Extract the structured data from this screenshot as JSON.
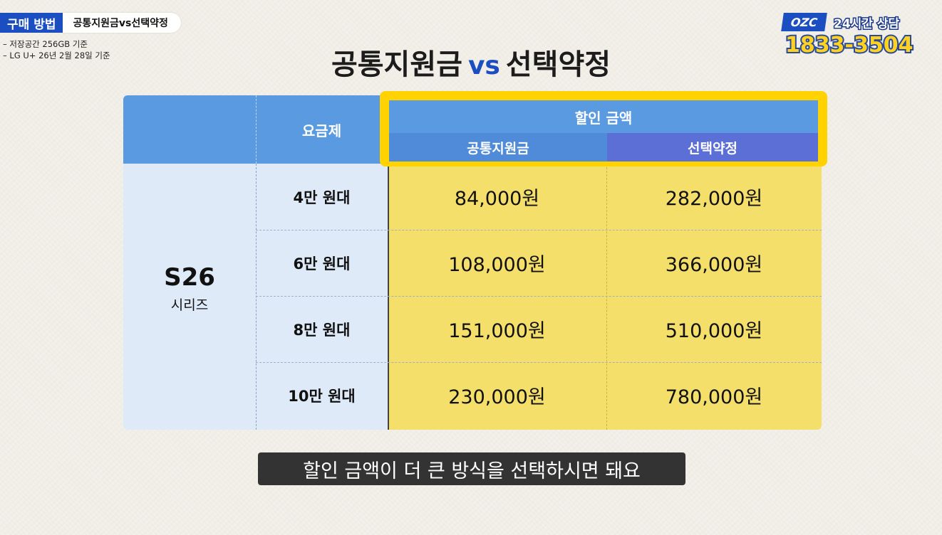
{
  "tag": {
    "main": "구매 방법",
    "sub": "공통지원금vs선택약정"
  },
  "notes": [
    "– 저장공간 256GB 기준",
    "– LG U+ 26년 2월 28일 기준"
  ],
  "brand": {
    "logo": "OZC",
    "hours": "24시간 상담",
    "phone": "1833-3504"
  },
  "title": {
    "left": "공통지원금",
    "vs": "vs",
    "right": "선택약정"
  },
  "table": {
    "plan_header": "요금제",
    "discount_header": "할인 금액",
    "col_common": "공통지원금",
    "col_selective": "선택약정",
    "series_name": "S26",
    "series_sub": "시리즈",
    "rows": [
      {
        "plan": "4만 원대",
        "common": "84,000원",
        "selective": "282,000원"
      },
      {
        "plan": "6만 원대",
        "common": "108,000원",
        "selective": "366,000원"
      },
      {
        "plan": "8만 원대",
        "common": "151,000원",
        "selective": "510,000원"
      },
      {
        "plan": "10만 원대",
        "common": "230,000원",
        "selective": "780,000원"
      }
    ]
  },
  "subtitle": "할인 금액이 더 큰 방식을 선택하시면 돼요",
  "colors": {
    "accent_blue": "#1b4fc1",
    "header_blue": "#5a9ae0",
    "highlight_yellow": "#ffd200",
    "cell_yellow": "#f5df6b"
  }
}
